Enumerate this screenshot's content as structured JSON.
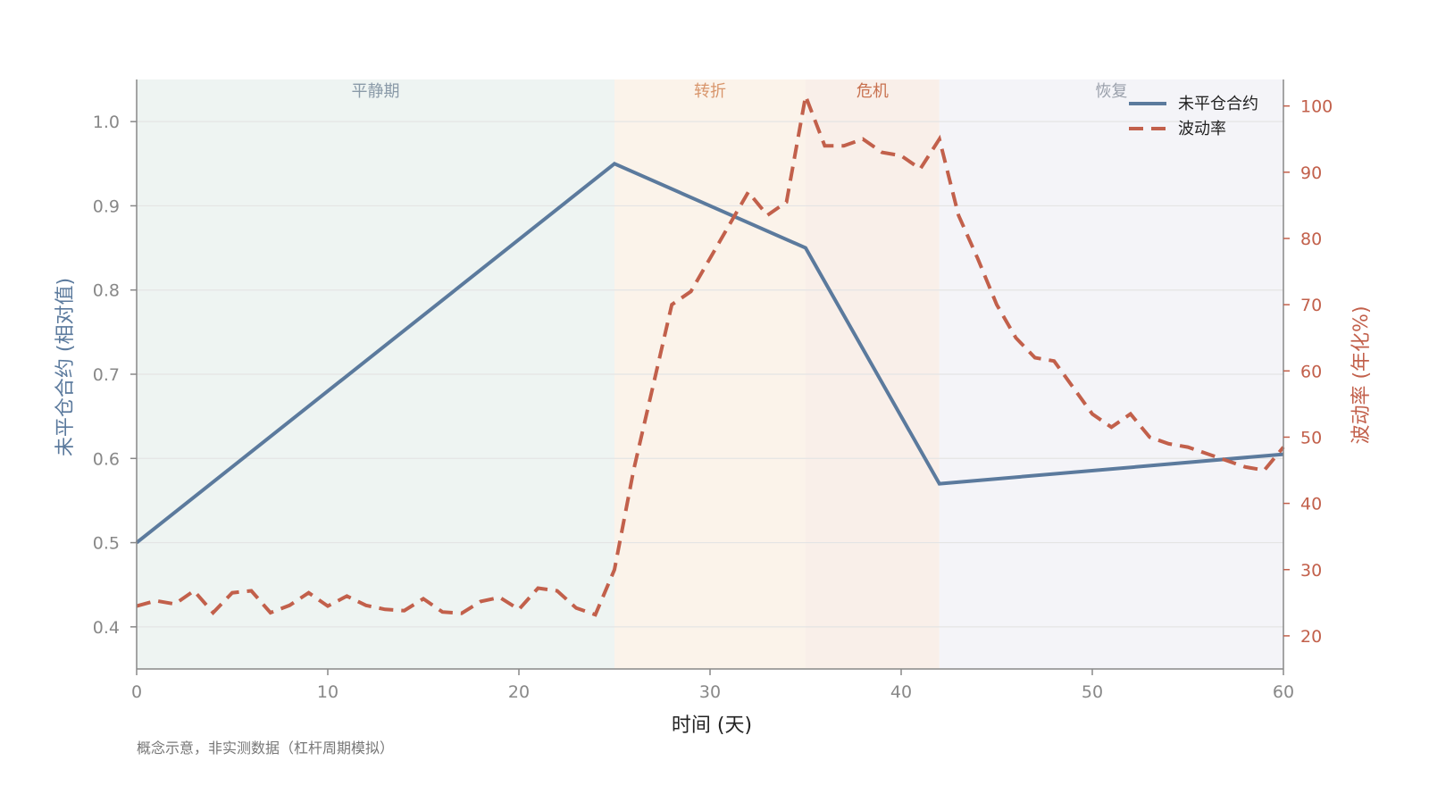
{
  "chart_data": {
    "type": "line",
    "xlabel": "时间 (天)",
    "ylabel_left": "未平仓合约 (相对值)",
    "ylabel_right": "波动率 (年化%)",
    "xlim": [
      0,
      60
    ],
    "ylim_left": [
      0.35,
      1.05
    ],
    "ylim_right": [
      15,
      104
    ],
    "x_ticks": [
      0,
      10,
      20,
      30,
      40,
      50,
      60
    ],
    "y_left_ticks": [
      0.4,
      0.5,
      0.6,
      0.7,
      0.8,
      0.9,
      1.0
    ],
    "y_left_tick_labels": [
      "0.4",
      "0.5",
      "0.6",
      "0.7",
      "0.8",
      "0.9",
      "1.0"
    ],
    "y_right_ticks": [
      20,
      30,
      40,
      50,
      60,
      70,
      80,
      90,
      100
    ],
    "grid": "horizontal",
    "legend_position": "top-right",
    "regions": [
      {
        "label": "平静期",
        "x0": 0,
        "x1": 25,
        "color": "#eef4f2",
        "label_color": "#8a9aa8"
      },
      {
        "label": "转折",
        "x0": 25,
        "x1": 35,
        "color": "#fbf3ea",
        "label_color": "#d8956b"
      },
      {
        "label": "危机",
        "x0": 35,
        "x1": 42,
        "color": "#f9efe9",
        "label_color": "#c8714f"
      },
      {
        "label": "恢复",
        "x0": 42,
        "x1": 60,
        "color": "#f4f4f8",
        "label_color": "#9aa0ab"
      }
    ],
    "series": [
      {
        "name": "未平仓合约",
        "axis": "left",
        "color": "#5b7a9d",
        "style": "solid",
        "x": [
          0,
          25,
          35,
          42,
          60
        ],
        "y": [
          0.5,
          0.95,
          0.85,
          0.57,
          0.605
        ]
      },
      {
        "name": "波动率",
        "axis": "right",
        "color": "#c2604b",
        "style": "dashed",
        "x": [
          0,
          1,
          2,
          3,
          4,
          5,
          6,
          7,
          8,
          9,
          10,
          11,
          12,
          13,
          14,
          15,
          16,
          17,
          18,
          19,
          20,
          21,
          22,
          23,
          24,
          25,
          26,
          27,
          28,
          29,
          30,
          31,
          32,
          33,
          34,
          35,
          36,
          37,
          38,
          39,
          40,
          41,
          42,
          43,
          44,
          45,
          46,
          47,
          48,
          49,
          50,
          51,
          52,
          53,
          54,
          55,
          56,
          57,
          58,
          59,
          60
        ],
        "y": [
          24.5,
          25.3,
          24.8,
          26.8,
          23.5,
          26.5,
          26.8,
          23.5,
          24.6,
          26.5,
          24.5,
          26.0,
          24.6,
          24.0,
          23.8,
          25.6,
          23.6,
          23.4,
          25.2,
          25.8,
          24.0,
          27.2,
          26.8,
          24.2,
          23.2,
          30.0,
          45.0,
          57.5,
          70.0,
          72.0,
          77.0,
          82.0,
          87.0,
          83.5,
          85.5,
          101.5,
          94.0,
          94.0,
          95.0,
          93.0,
          92.5,
          90.5,
          95.0,
          83.5,
          77.0,
          70.0,
          65.0,
          62.0,
          61.5,
          57.5,
          53.5,
          51.5,
          53.5,
          50.0,
          49.0,
          48.5,
          47.5,
          46.5,
          45.5,
          45.0,
          48.5
        ]
      }
    ]
  },
  "note": "概念示意，非实测数据（杠杆周期模拟）",
  "colors": {
    "left_axis": "#5b7a9d",
    "right_axis": "#c2604b",
    "axis_line": "#888888",
    "grid": "#e4e4e4",
    "tick_label": "#888888"
  }
}
